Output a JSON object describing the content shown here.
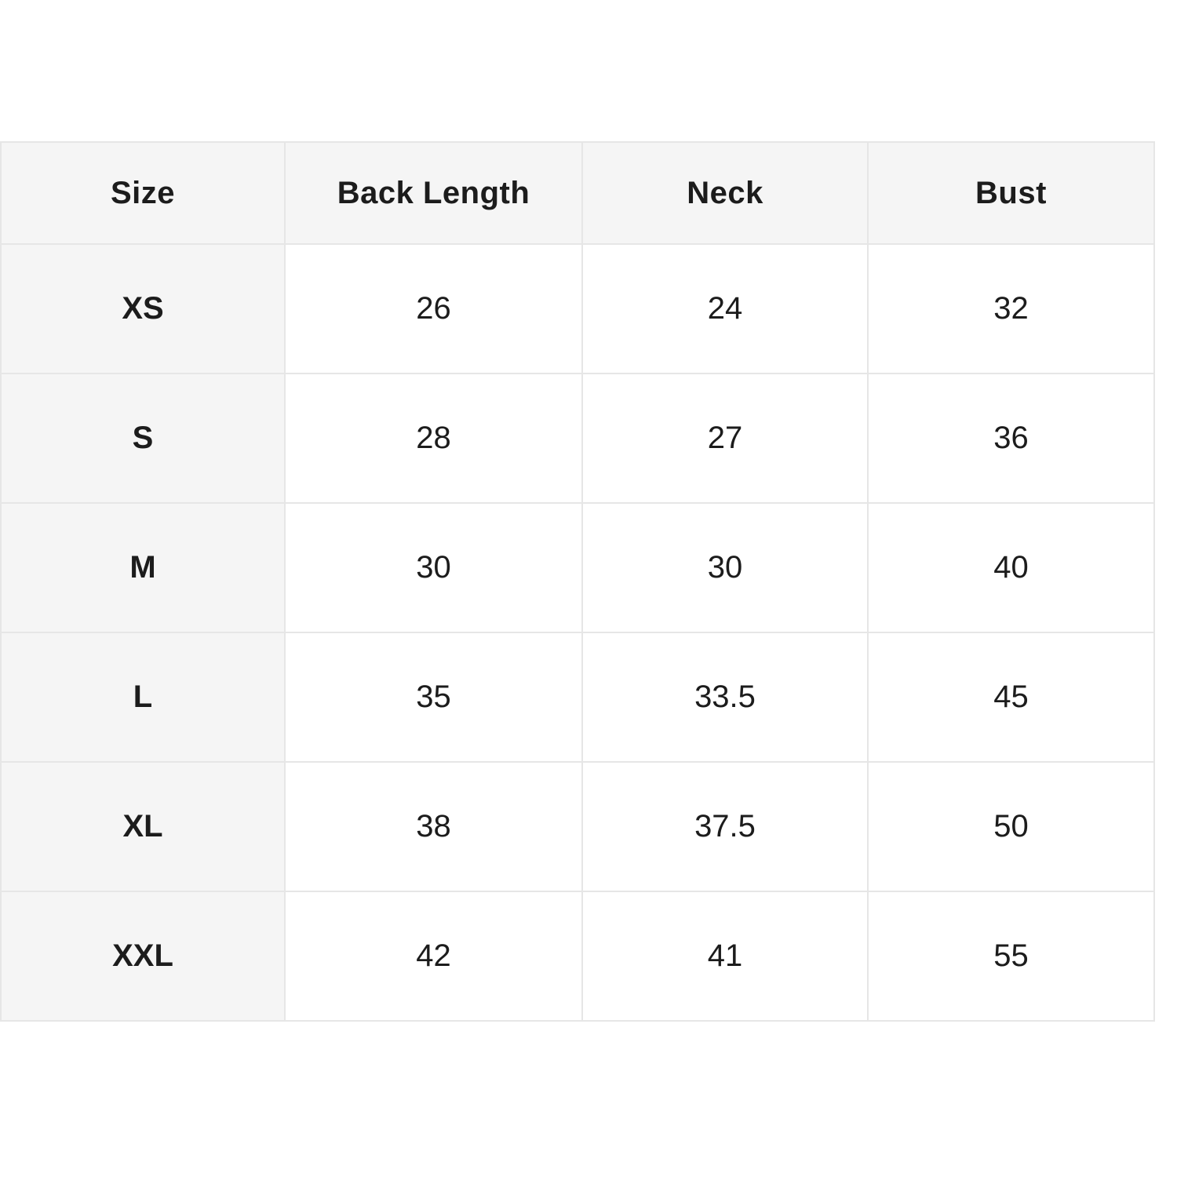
{
  "table": {
    "header": {
      "size": "Size",
      "back_length": "Back Length",
      "neck": "Neck",
      "bust": "Bust"
    },
    "rows": [
      {
        "size": "XS",
        "back_length": "26",
        "neck": "24",
        "bust": "32"
      },
      {
        "size": "S",
        "back_length": "28",
        "neck": "27",
        "bust": "36"
      },
      {
        "size": "M",
        "back_length": "30",
        "neck": "30",
        "bust": "40"
      },
      {
        "size": "L",
        "back_length": "35",
        "neck": "33.5",
        "bust": "45"
      },
      {
        "size": "XL",
        "back_length": "38",
        "neck": "37.5",
        "bust": "50"
      },
      {
        "size": "XXL",
        "back_length": "42",
        "neck": "41",
        "bust": "55"
      }
    ]
  },
  "colors": {
    "header_bg": "#f5f5f5",
    "row_label_bg": "#f5f5f5",
    "cell_bg": "#ffffff",
    "border": "#e6e6e6",
    "text": "#1c1c1c",
    "page_bg": "#ffffff"
  },
  "chart_data": {
    "type": "table",
    "title": "",
    "columns": [
      "Size",
      "Back Length",
      "Neck",
      "Bust"
    ],
    "rows": [
      [
        "XS",
        26,
        24,
        32
      ],
      [
        "S",
        28,
        27,
        36
      ],
      [
        "M",
        30,
        30,
        40
      ],
      [
        "L",
        35,
        33.5,
        45
      ],
      [
        "XL",
        38,
        37.5,
        50
      ],
      [
        "XXL",
        42,
        41,
        55
      ]
    ]
  }
}
